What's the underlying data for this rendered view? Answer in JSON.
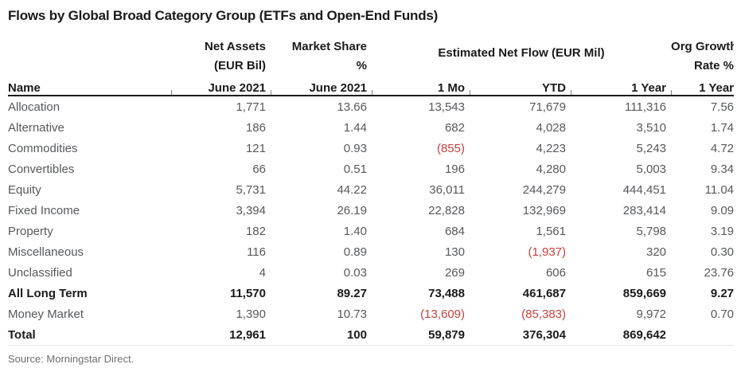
{
  "title": "Flows by Global Broad Category Group (ETFs and Open-End Funds)",
  "source": "Source: Morningstar Direct.",
  "colors": {
    "emphasis_text": "#1a1a1a",
    "body_text": "#56585b",
    "negative": "#c9403c",
    "source_text": "#6f6f6f",
    "header_rule": "#1a1a1a"
  },
  "table": {
    "header": {
      "name_label": "Name",
      "net_assets_line1": "Net Assets",
      "net_assets_line2": "(EUR Bil)",
      "net_assets_line3": "June 2021",
      "market_share_line1": "Market Share",
      "market_share_line2": "%",
      "market_share_line3": "June 2021",
      "flow_group": "Estimated Net Flow (EUR Mil)",
      "flow_1mo": "1 Mo",
      "flow_ytd": "YTD",
      "flow_1year": "1 Year",
      "org_growth_line1": "Org Growth",
      "org_growth_line2": "Rate %",
      "org_growth_line3": "1 Year"
    }
  },
  "chart_data": {
    "type": "table",
    "columns": [
      "Name",
      "Net Assets (EUR Bil) June 2021",
      "Market Share % June 2021",
      "Estimated Net Flow (EUR Mil) 1 Mo",
      "Estimated Net Flow (EUR Mil) YTD",
      "Estimated Net Flow (EUR Mil) 1 Year",
      "Org Growth Rate % 1 Year"
    ],
    "rows": [
      {
        "name": "Allocation",
        "values": [
          "1,771",
          "13.66",
          "13,543",
          "71,679",
          "111,316",
          "7.56"
        ],
        "emphasis": false
      },
      {
        "name": "Alternative",
        "values": [
          "186",
          "1.44",
          "682",
          "4,028",
          "3,510",
          "1.74"
        ],
        "emphasis": false
      },
      {
        "name": "Commodities",
        "values": [
          "121",
          "0.93",
          "(855)",
          "4,223",
          "5,243",
          "4.72"
        ],
        "emphasis": false
      },
      {
        "name": "Convertibles",
        "values": [
          "66",
          "0.51",
          "196",
          "4,280",
          "5,003",
          "9.34"
        ],
        "emphasis": false
      },
      {
        "name": "Equity",
        "values": [
          "5,731",
          "44.22",
          "36,011",
          "244,279",
          "444,451",
          "11.04"
        ],
        "emphasis": false
      },
      {
        "name": "Fixed Income",
        "values": [
          "3,394",
          "26.19",
          "22,828",
          "132,969",
          "283,414",
          "9.09"
        ],
        "emphasis": false
      },
      {
        "name": "Property",
        "values": [
          "182",
          "1.40",
          "684",
          "1,561",
          "5,798",
          "3.19"
        ],
        "emphasis": false
      },
      {
        "name": "Miscellaneous",
        "values": [
          "116",
          "0.89",
          "130",
          "(1,937)",
          "320",
          "0.30"
        ],
        "emphasis": false
      },
      {
        "name": "Unclassified",
        "values": [
          "4",
          "0.03",
          "269",
          "606",
          "615",
          "23.76"
        ],
        "emphasis": false
      },
      {
        "name": "All Long Term",
        "values": [
          "11,570",
          "89.27",
          "73,488",
          "461,687",
          "859,669",
          "9.27"
        ],
        "emphasis": true
      },
      {
        "name": "Money Market",
        "values": [
          "1,390",
          "10.73",
          "(13,609)",
          "(85,383)",
          "9,972",
          "0.70"
        ],
        "emphasis": false
      },
      {
        "name": "Total",
        "values": [
          "12,961",
          "100",
          "59,879",
          "376,304",
          "869,642",
          ""
        ],
        "emphasis": true
      }
    ]
  }
}
